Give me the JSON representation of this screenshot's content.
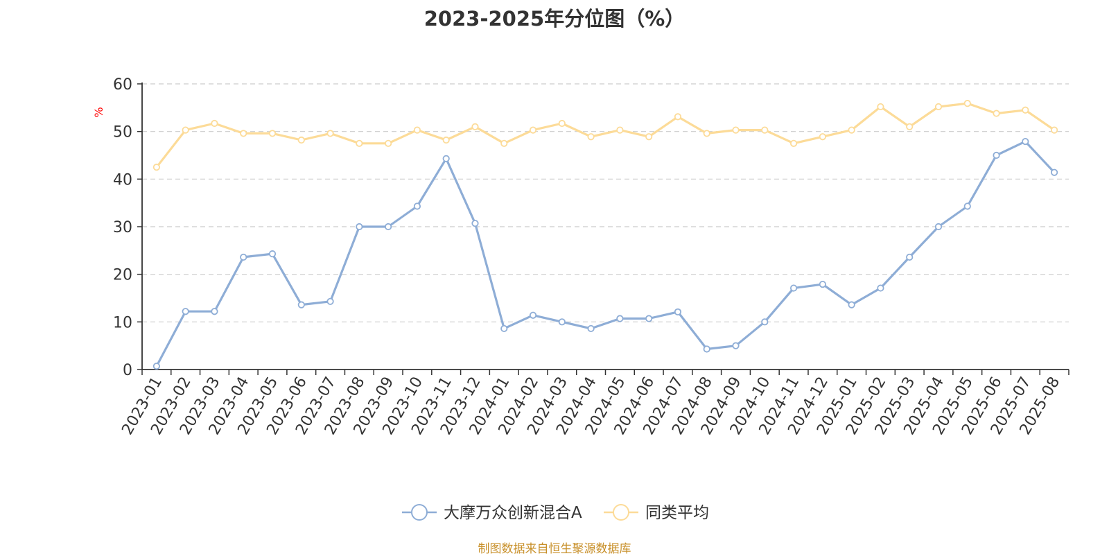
{
  "chart_data": {
    "type": "line",
    "title": "2023-2025年分位图（%）",
    "ylabel": "%",
    "xlabel": "",
    "ylim": [
      0,
      60
    ],
    "yticks": [
      0,
      10,
      20,
      30,
      40,
      50,
      60
    ],
    "grid": true,
    "legend_position": "bottom",
    "categories": [
      "2023-01",
      "2023-02",
      "2023-03",
      "2023-04",
      "2023-05",
      "2023-06",
      "2023-07",
      "2023-08",
      "2023-09",
      "2023-10",
      "2023-11",
      "2023-12",
      "2024-01",
      "2024-02",
      "2024-03",
      "2024-04",
      "2024-05",
      "2024-06",
      "2024-07",
      "2024-08",
      "2024-09",
      "2024-10",
      "2024-11",
      "2024-12",
      "2025-01",
      "2025-02",
      "2025-03",
      "2025-04",
      "2025-05",
      "2025-06",
      "2025-07",
      "2025-08"
    ],
    "series": [
      {
        "name": "大摩万众创新混合A",
        "color": "#8eadd6",
        "values": [
          0.7,
          12.2,
          12.2,
          23.6,
          24.3,
          13.6,
          14.3,
          30.0,
          30.0,
          34.3,
          44.3,
          30.7,
          8.6,
          11.4,
          10.0,
          8.6,
          10.7,
          10.7,
          12.1,
          4.3,
          5.0,
          10.0,
          17.1,
          17.9,
          13.6,
          17.1,
          23.6,
          30.0,
          34.3,
          45.0,
          47.9,
          41.4
        ]
      },
      {
        "name": "同类平均",
        "color": "#fcdb98",
        "values": [
          42.5,
          50.3,
          51.7,
          49.6,
          49.6,
          48.2,
          49.6,
          47.5,
          47.5,
          50.3,
          48.2,
          51.0,
          47.5,
          50.3,
          51.7,
          48.9,
          50.3,
          48.9,
          53.1,
          49.6,
          50.3,
          50.3,
          47.5,
          48.9,
          50.3,
          55.2,
          51.0,
          55.2,
          55.9,
          53.8,
          54.5,
          50.3
        ]
      }
    ]
  },
  "footer": {
    "source": "制图数据来自恒生聚源数据库"
  },
  "colors": {
    "axis": "#333333",
    "grid": "#cccccc",
    "ylabel": "#ff0000",
    "source": "#c8902a"
  }
}
